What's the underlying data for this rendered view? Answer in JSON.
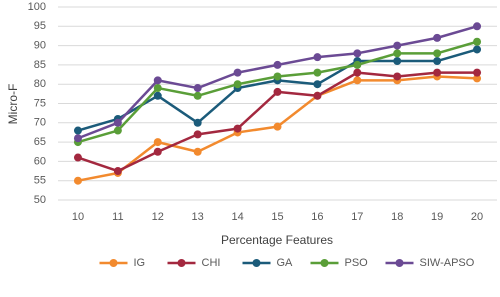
{
  "chart_data": {
    "type": "line",
    "x_label": "Percentage Features",
    "y_label": "Micro-F",
    "x": [
      10,
      11,
      12,
      13,
      14,
      15,
      16,
      17,
      18,
      19,
      20
    ],
    "xlim": [
      9.5,
      20.5
    ],
    "xticks": [
      10,
      11,
      12,
      13,
      14,
      15,
      16,
      17,
      18,
      19,
      20
    ],
    "ylim": [
      50,
      100
    ],
    "yticks": [
      50,
      55,
      60,
      65,
      70,
      75,
      80,
      85,
      90,
      95,
      100
    ],
    "grid": true,
    "legend": "bottom",
    "series": [
      {
        "name": "IG",
        "color": "#f28a2e",
        "values": [
          55,
          57,
          65,
          62.5,
          67.5,
          69,
          77,
          81,
          81,
          82,
          81.5
        ]
      },
      {
        "name": "CHI",
        "color": "#a3283f",
        "values": [
          61,
          57.5,
          62.5,
          67,
          68.5,
          78,
          77,
          83,
          82,
          83,
          83
        ]
      },
      {
        "name": "GA",
        "color": "#1b5b7a",
        "values": [
          68,
          71,
          77,
          70,
          79,
          81,
          80,
          86,
          86,
          86,
          89
        ]
      },
      {
        "name": "PSO",
        "color": "#5a9e38",
        "values": [
          65,
          68,
          79,
          77,
          80,
          82,
          83,
          85,
          88,
          88,
          91
        ]
      },
      {
        "name": "SIW-APSO",
        "color": "#6b4a94",
        "values": [
          66,
          70,
          81,
          79,
          83,
          85,
          87,
          88,
          90,
          92,
          95
        ]
      }
    ]
  }
}
